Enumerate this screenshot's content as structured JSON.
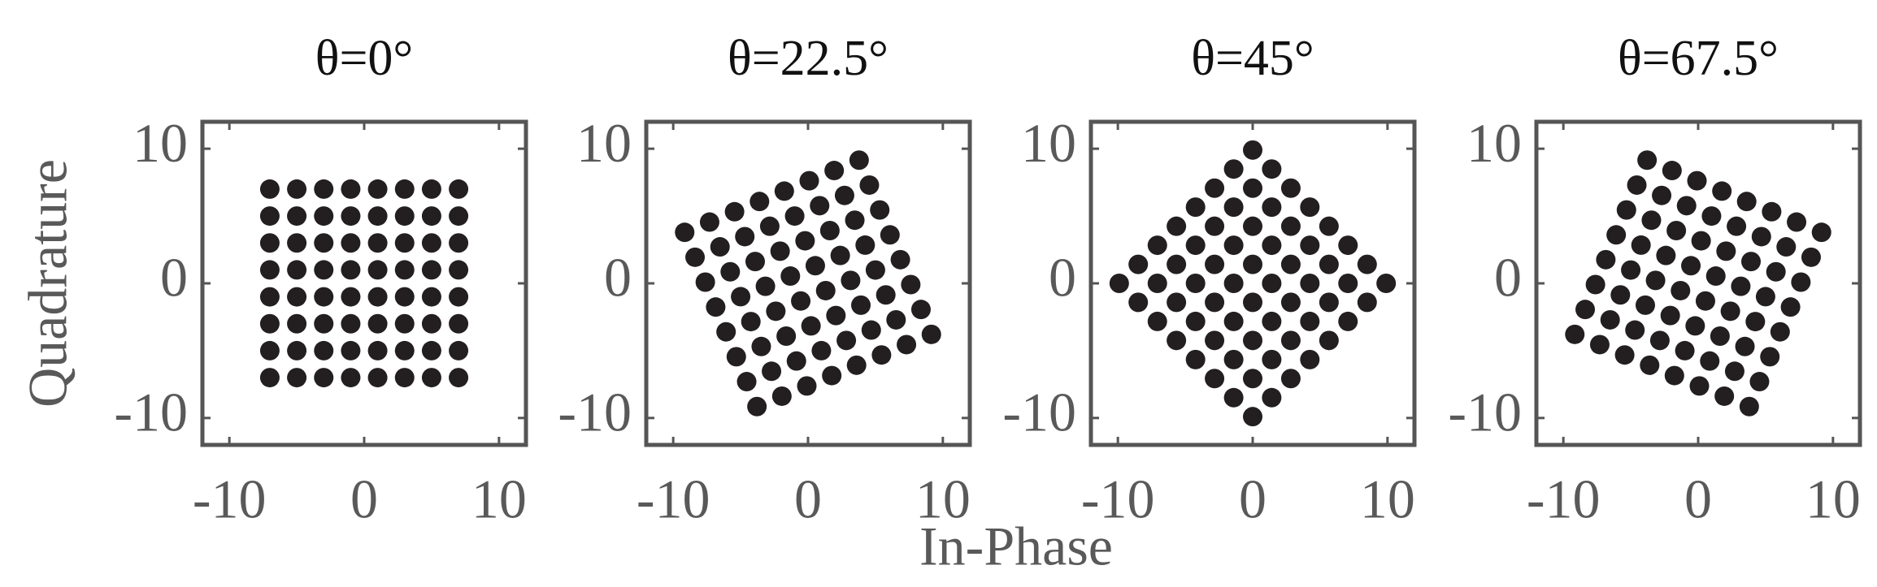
{
  "chart_data": [
    {
      "type": "scatter",
      "title": "θ=0°",
      "ylabel": "Quadrature",
      "color": "#231f20",
      "xlim": [
        -12,
        12
      ],
      "ylim": [
        -12,
        12
      ],
      "xticks": [
        -10,
        0,
        10
      ],
      "yticks": [
        -10,
        0,
        10
      ],
      "x": [
        -7,
        -7,
        -7,
        -7,
        -7,
        -7,
        -7,
        -7,
        -5,
        -5,
        -5,
        -5,
        -5,
        -5,
        -5,
        -5,
        -3,
        -3,
        -3,
        -3,
        -3,
        -3,
        -3,
        -3,
        -1,
        -1,
        -1,
        -1,
        -1,
        -1,
        -1,
        -1,
        1,
        1,
        1,
        1,
        1,
        1,
        1,
        1,
        3,
        3,
        3,
        3,
        3,
        3,
        3,
        3,
        5,
        5,
        5,
        5,
        5,
        5,
        5,
        5,
        7,
        7,
        7,
        7,
        7,
        7,
        7,
        7
      ],
      "y": [
        -7,
        -5,
        -3,
        -1,
        1,
        3,
        5,
        7,
        -7,
        -5,
        -3,
        -1,
        1,
        3,
        5,
        7,
        -7,
        -5,
        -3,
        -1,
        1,
        3,
        5,
        7,
        -7,
        -5,
        -3,
        -1,
        1,
        3,
        5,
        7,
        -7,
        -5,
        -3,
        -1,
        1,
        3,
        5,
        7,
        -7,
        -5,
        -3,
        -1,
        1,
        3,
        5,
        7,
        -7,
        -5,
        -3,
        -1,
        1,
        3,
        5,
        7,
        -7,
        -5,
        -3,
        -1,
        1,
        3,
        5,
        7
      ]
    },
    {
      "type": "scatter",
      "title": "θ=22.5°",
      "color": "#231f20",
      "xlim": [
        -12,
        12
      ],
      "ylim": [
        -12,
        12
      ],
      "xticks": [
        -10,
        0,
        10
      ],
      "yticks": [
        -10,
        0,
        10
      ],
      "x": [
        -3.79,
        -4.55,
        -5.32,
        -6.08,
        -6.85,
        -7.62,
        -8.38,
        -9.15,
        -1.94,
        -2.71,
        -3.47,
        -4.24,
        -5,
        -5.77,
        -6.53,
        -7.3,
        -0.09,
        -0.86,
        -1.62,
        -2.39,
        -3.16,
        -3.92,
        -4.69,
        -5.45,
        1.76,
        0.99,
        0.22,
        -0.54,
        -1.31,
        -2.07,
        -2.84,
        -3.6,
        3.6,
        2.84,
        2.07,
        1.31,
        0.54,
        -0.22,
        -0.99,
        -1.76,
        5.45,
        4.69,
        3.92,
        3.16,
        2.39,
        1.62,
        0.86,
        0.09,
        7.3,
        6.53,
        5.77,
        5,
        4.24,
        3.47,
        2.71,
        1.94,
        9.15,
        8.38,
        7.62,
        6.85,
        6.08,
        5.32,
        4.55,
        3.79
      ],
      "y": [
        -9.15,
        -7.3,
        -5.45,
        -3.6,
        -1.76,
        0.09,
        1.94,
        3.79,
        -8.38,
        -6.53,
        -4.69,
        -2.84,
        -0.99,
        0.86,
        2.71,
        4.55,
        -7.62,
        -5.77,
        -3.92,
        -2.07,
        -0.22,
        1.62,
        3.47,
        5.32,
        -6.85,
        -5,
        -3.16,
        -1.31,
        0.54,
        2.39,
        4.24,
        6.08,
        -6.08,
        -4.24,
        -2.39,
        -0.54,
        1.31,
        3.16,
        5,
        6.85,
        -5.32,
        -3.47,
        -1.62,
        0.22,
        2.07,
        3.92,
        5.77,
        7.62,
        -4.55,
        -2.71,
        -0.86,
        0.99,
        2.84,
        4.69,
        6.53,
        8.38,
        -3.79,
        -1.94,
        -0.09,
        1.76,
        3.6,
        5.45,
        7.3,
        9.15
      ]
    },
    {
      "type": "scatter",
      "title": "θ=45°",
      "color": "#231f20",
      "xlim": [
        -12,
        12
      ],
      "ylim": [
        -12,
        12
      ],
      "xticks": [
        -10,
        0,
        10
      ],
      "yticks": [
        -10,
        0,
        10
      ],
      "x": [
        0,
        -1.41,
        -2.83,
        -4.24,
        -5.66,
        -7.07,
        -8.49,
        -9.9,
        1.41,
        0,
        -1.41,
        -2.83,
        -4.24,
        -5.66,
        -7.07,
        -8.49,
        2.83,
        1.41,
        0,
        -1.41,
        -2.83,
        -4.24,
        -5.66,
        -7.07,
        4.24,
        2.83,
        1.41,
        0,
        -1.41,
        -2.83,
        -4.24,
        -5.66,
        5.66,
        4.24,
        2.83,
        1.41,
        0,
        -1.41,
        -2.83,
        -4.24,
        7.07,
        5.66,
        4.24,
        2.83,
        1.41,
        0,
        -1.41,
        -2.83,
        8.49,
        7.07,
        5.66,
        4.24,
        2.83,
        1.41,
        0,
        -1.41,
        9.9,
        8.49,
        7.07,
        5.66,
        4.24,
        2.83,
        1.41,
        0
      ],
      "y": [
        -9.9,
        -8.49,
        -7.07,
        -5.66,
        -4.24,
        -2.83,
        -1.41,
        0,
        -8.49,
        -7.07,
        -5.66,
        -4.24,
        -2.83,
        -1.41,
        0,
        1.41,
        -7.07,
        -5.66,
        -4.24,
        -2.83,
        -1.41,
        0,
        1.41,
        2.83,
        -5.66,
        -4.24,
        -2.83,
        -1.41,
        0,
        1.41,
        2.83,
        4.24,
        -4.24,
        -2.83,
        -1.41,
        0,
        1.41,
        2.83,
        4.24,
        5.66,
        -2.83,
        -1.41,
        0,
        1.41,
        2.83,
        4.24,
        5.66,
        7.07,
        -1.41,
        0,
        1.41,
        2.83,
        4.24,
        5.66,
        7.07,
        8.49,
        0,
        1.41,
        2.83,
        4.24,
        5.66,
        7.07,
        8.49,
        9.9
      ]
    },
    {
      "type": "scatter",
      "title": "θ=67.5°",
      "color": "#231f20",
      "xlim": [
        -12,
        12
      ],
      "ylim": [
        -12,
        12
      ],
      "xticks": [
        -10,
        0,
        10
      ],
      "yticks": [
        -10,
        0,
        10
      ],
      "x": [
        3.79,
        1.94,
        0.09,
        -1.76,
        -3.6,
        -5.45,
        -7.3,
        -9.15,
        4.55,
        2.71,
        0.86,
        -0.99,
        -2.84,
        -4.69,
        -6.53,
        -8.38,
        5.32,
        3.47,
        1.62,
        -0.22,
        -2.07,
        -3.92,
        -5.77,
        -7.62,
        6.08,
        4.24,
        2.39,
        0.54,
        -1.31,
        -3.16,
        -5,
        -6.85,
        6.85,
        5,
        3.16,
        1.31,
        -0.54,
        -2.39,
        -4.24,
        -6.08,
        7.62,
        5.77,
        3.92,
        2.07,
        0.22,
        -1.62,
        -3.47,
        -5.32,
        8.38,
        6.53,
        4.69,
        2.84,
        0.99,
        -0.86,
        -2.71,
        -4.55,
        9.15,
        7.3,
        5.45,
        3.6,
        1.76,
        -0.09,
        -1.94,
        -3.79
      ],
      "y": [
        -9.15,
        -8.38,
        -7.62,
        -6.85,
        -6.08,
        -5.32,
        -4.55,
        -3.79,
        -7.3,
        -6.53,
        -5.77,
        -5,
        -4.24,
        -3.47,
        -2.71,
        -1.94,
        -5.45,
        -4.69,
        -3.92,
        -3.16,
        -2.39,
        -1.62,
        -0.86,
        -0.09,
        -3.6,
        -2.84,
        -2.07,
        -1.31,
        -0.54,
        0.22,
        0.99,
        1.76,
        -1.76,
        -0.99,
        -0.22,
        0.54,
        1.31,
        2.07,
        2.84,
        3.6,
        0.09,
        0.86,
        1.62,
        2.39,
        3.16,
        3.92,
        4.69,
        5.45,
        1.94,
        2.71,
        3.47,
        4.24,
        5,
        5.77,
        6.53,
        7.3,
        3.79,
        4.55,
        5.32,
        6.08,
        6.85,
        7.62,
        8.38,
        9.15
      ]
    }
  ],
  "xlabel": "In-Phase"
}
